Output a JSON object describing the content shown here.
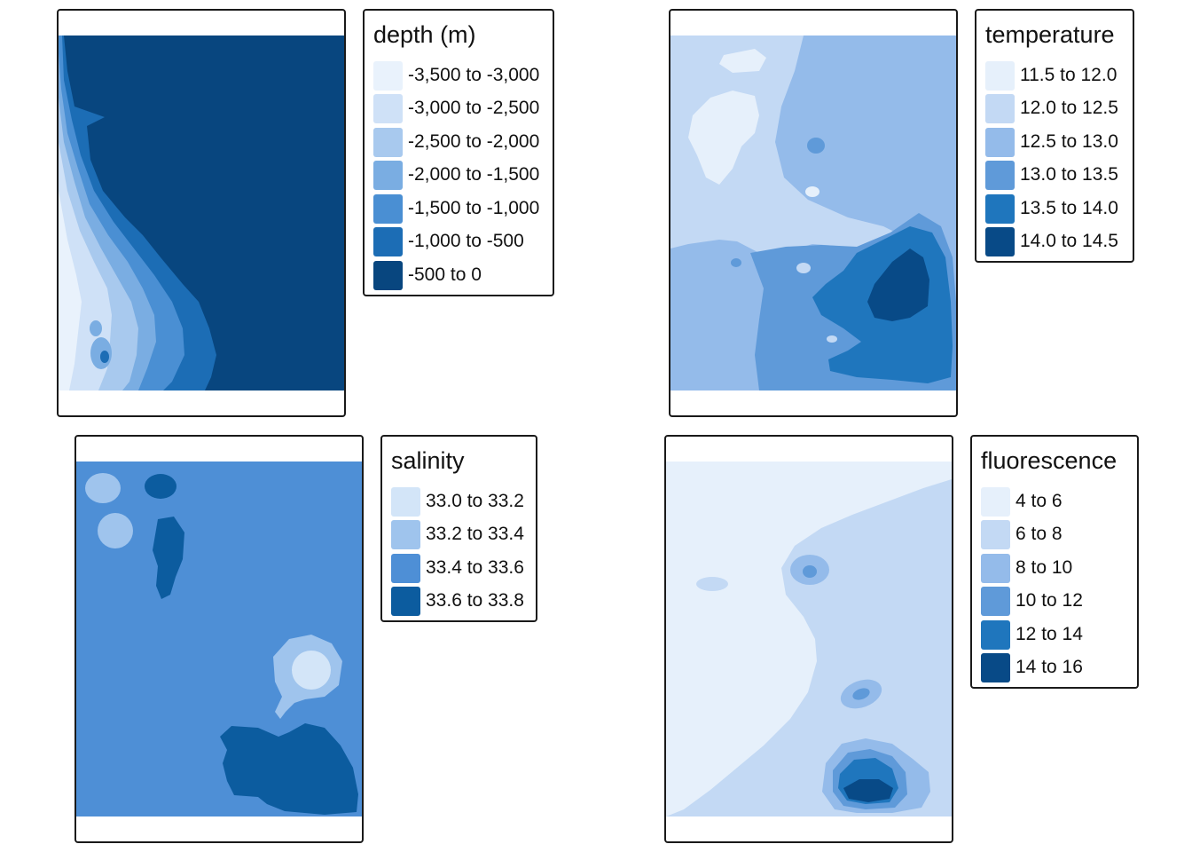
{
  "panels": [
    {
      "id": "depth",
      "legend": {
        "title": "depth (m)",
        "items": [
          {
            "label": "-3,500 to -3,000",
            "color": "#e9f2fc"
          },
          {
            "label": "-3,000 to -2,500",
            "color": "#cfe1f7"
          },
          {
            "label": "-2,500 to -2,000",
            "color": "#a8c9ee"
          },
          {
            "label": "-2,000 to -1,500",
            "color": "#7aade2"
          },
          {
            "label": "-1,500 to -1,000",
            "color": "#4a8fd3"
          },
          {
            "label": "-1,000 to -500",
            "color": "#1c6db5"
          },
          {
            "label": "-500 to 0",
            "color": "#08467f"
          }
        ]
      }
    },
    {
      "id": "temperature",
      "legend": {
        "title": "temperature",
        "items": [
          {
            "label": "11.5 to 12.0",
            "color": "#e6f0fb"
          },
          {
            "label": "12.0 to 12.5",
            "color": "#c3d9f4"
          },
          {
            "label": "12.5 to 13.0",
            "color": "#94bbea"
          },
          {
            "label": "13.0 to 13.5",
            "color": "#5f9ad9"
          },
          {
            "label": "13.5 to 14.0",
            "color": "#1f76bd"
          },
          {
            "label": "14.0 to 14.5",
            "color": "#084a87"
          }
        ]
      }
    },
    {
      "id": "salinity",
      "legend": {
        "title": "salinity",
        "items": [
          {
            "label": "33.0 to 33.2",
            "color": "#d3e5f8"
          },
          {
            "label": "33.2 to 33.4",
            "color": "#9fc4ed"
          },
          {
            "label": "33.4 to 33.6",
            "color": "#4e8fd6"
          },
          {
            "label": "33.6 to 33.8",
            "color": "#0c5c9f"
          }
        ]
      }
    },
    {
      "id": "fluorescence",
      "legend": {
        "title": "fluorescence",
        "items": [
          {
            "label": "4 to 6",
            "color": "#e6f0fb"
          },
          {
            "label": "6 to 8",
            "color": "#c3d9f4"
          },
          {
            "label": "8 to 10",
            "color": "#94bbea"
          },
          {
            "label": "10 to 12",
            "color": "#5f9ad9"
          },
          {
            "label": "12 to 14",
            "color": "#1f76bd"
          },
          {
            "label": "14 to 16",
            "color": "#084a87"
          }
        ]
      }
    }
  ]
}
